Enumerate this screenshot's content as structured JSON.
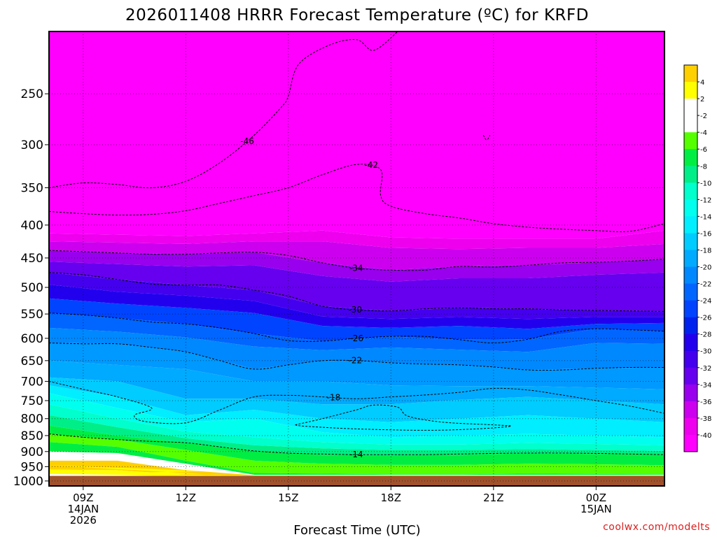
{
  "chart_data": {
    "type": "heatmap",
    "title": "2026011408 HRRR Forecast Temperature (ºC) for KRFD",
    "xlabel": "Forecast Time (UTC)",
    "ylabel": "",
    "x_ticks": [
      {
        "value": 9,
        "lines": [
          "09Z",
          "14JAN",
          "2026"
        ]
      },
      {
        "value": 12,
        "lines": [
          "12Z"
        ]
      },
      {
        "value": 15,
        "lines": [
          "15Z"
        ]
      },
      {
        "value": 18,
        "lines": [
          "18Z"
        ]
      },
      {
        "value": 21,
        "lines": [
          "21Z"
        ]
      },
      {
        "value": 24,
        "lines": [
          "00Z",
          "15JAN"
        ]
      }
    ],
    "y_ticks": [
      250,
      300,
      350,
      400,
      450,
      500,
      550,
      600,
      650,
      700,
      750,
      800,
      850,
      900,
      950,
      1000
    ],
    "xlim": [
      8,
      26
    ],
    "ylim": [
      1018,
      200
    ],
    "y_scale": "log (pressure)",
    "grid": "dotted",
    "colorbar": {
      "placement": "right",
      "labels": [
        "4",
        "2",
        "-2",
        "-4",
        "-6",
        "-8",
        "-10",
        "-12",
        "-14",
        "-16",
        "-18",
        "-20",
        "-22",
        "-24",
        "-26",
        "-28",
        "-30",
        "-32",
        "-34",
        "-36",
        "-38",
        "-40"
      ],
      "colors": [
        "#ffd000",
        "#ffff00",
        "#ffffff",
        "#ffffff",
        "#55ff00",
        "#00ee44",
        "#00ee88",
        "#00ffcc",
        "#00ffee",
        "#00eeff",
        "#00ccff",
        "#00aaff",
        "#0088ff",
        "#0066ff",
        "#0044ff",
        "#0022ee",
        "#2200ee",
        "#4400ee",
        "#6600ee",
        "#9900ee",
        "#cc00ee",
        "#ee00ee",
        "#ff00ff"
      ]
    },
    "contours": [
      {
        "label": "-46",
        "pts": [
          [
            8,
            350
          ],
          [
            9,
            344
          ],
          [
            10,
            346
          ],
          [
            11,
            350
          ],
          [
            12,
            342
          ],
          [
            13,
            320
          ],
          [
            14,
            290
          ],
          [
            14.8,
            262
          ],
          [
            15,
            252
          ],
          [
            15.3,
            225
          ],
          [
            16.2,
            210
          ],
          [
            17,
            206
          ],
          [
            17.5,
            214
          ],
          [
            18.2,
            200
          ]
        ]
      },
      {
        "label": "-42",
        "pts": [
          [
            8,
            381
          ],
          [
            9,
            384
          ],
          [
            10,
            386
          ],
          [
            11,
            385
          ],
          [
            12,
            380
          ],
          [
            13,
            370
          ],
          [
            14,
            360
          ],
          [
            15,
            350
          ],
          [
            16,
            334
          ],
          [
            17,
            322
          ],
          [
            17.7,
            328
          ],
          [
            17.7,
            360
          ],
          [
            18,
            374
          ],
          [
            19,
            384
          ],
          [
            20,
            390
          ],
          [
            21,
            398
          ],
          [
            22,
            403
          ],
          [
            23,
            406
          ],
          [
            24,
            408
          ],
          [
            25,
            409
          ],
          [
            26,
            398
          ]
        ]
      },
      {
        "label": "-34",
        "pts": [
          [
            8,
            438
          ],
          [
            9,
            440
          ],
          [
            10,
            442
          ],
          [
            11,
            444
          ],
          [
            12,
            444
          ],
          [
            13,
            442
          ],
          [
            14,
            441
          ],
          [
            15,
            446
          ],
          [
            16,
            458
          ],
          [
            17,
            467
          ],
          [
            18,
            470
          ],
          [
            19,
            470
          ],
          [
            20,
            464
          ],
          [
            21,
            465
          ],
          [
            22,
            462
          ],
          [
            23,
            458
          ],
          [
            24,
            457
          ],
          [
            25,
            455
          ],
          [
            26,
            452
          ]
        ]
      },
      {
        "label": "-30",
        "pts": [
          [
            8,
            474
          ],
          [
            9,
            478
          ],
          [
            10,
            486
          ],
          [
            11,
            494
          ],
          [
            12,
            496
          ],
          [
            13,
            496
          ],
          [
            14,
            505
          ],
          [
            15,
            516
          ],
          [
            16,
            535
          ],
          [
            17,
            542
          ],
          [
            18,
            544
          ],
          [
            19,
            540
          ],
          [
            20,
            538
          ],
          [
            21,
            540
          ],
          [
            22,
            540
          ],
          [
            23,
            542
          ],
          [
            24,
            543
          ],
          [
            25,
            544
          ],
          [
            26,
            545
          ]
        ]
      },
      {
        "label": "-26",
        "pts": [
          [
            8,
            548
          ],
          [
            9,
            552
          ],
          [
            10,
            558
          ],
          [
            11,
            566
          ],
          [
            12,
            570
          ],
          [
            13,
            578
          ],
          [
            14,
            590
          ],
          [
            15,
            605
          ],
          [
            16,
            606
          ],
          [
            17,
            600
          ],
          [
            18,
            596
          ],
          [
            19,
            596
          ],
          [
            20,
            603
          ],
          [
            21,
            610
          ],
          [
            22,
            602
          ],
          [
            23,
            585
          ],
          [
            24,
            580
          ],
          [
            25,
            582
          ],
          [
            26,
            585
          ]
        ]
      },
      {
        "label": "-22",
        "pts": [
          [
            8,
            610
          ],
          [
            9,
            612
          ],
          [
            10,
            612
          ],
          [
            11,
            620
          ],
          [
            12,
            630
          ],
          [
            13,
            650
          ],
          [
            14,
            670
          ],
          [
            15,
            660
          ],
          [
            16,
            650
          ],
          [
            17,
            650
          ],
          [
            18,
            655
          ],
          [
            19,
            658
          ],
          [
            20,
            660
          ],
          [
            21,
            665
          ],
          [
            22,
            672
          ],
          [
            23,
            672
          ],
          [
            24,
            668
          ],
          [
            25,
            666
          ],
          [
            26,
            666
          ]
        ]
      },
      {
        "label": "-18",
        "pts": [
          [
            8,
            700
          ],
          [
            9,
            720
          ],
          [
            10,
            740
          ],
          [
            11,
            770
          ],
          [
            10.5,
            790
          ],
          [
            10.8,
            808
          ],
          [
            12,
            812
          ],
          [
            13,
            775
          ],
          [
            14,
            740
          ],
          [
            15,
            736
          ],
          [
            16,
            740
          ],
          [
            17,
            745
          ],
          [
            18,
            740
          ],
          [
            19,
            735
          ],
          [
            20,
            728
          ],
          [
            21,
            718
          ],
          [
            22,
            722
          ],
          [
            23,
            735
          ],
          [
            24,
            750
          ],
          [
            25,
            765
          ],
          [
            26,
            785
          ]
        ]
      },
      {
        "label": "",
        "pts": [
          [
            15.2,
            818
          ],
          [
            16,
            800
          ],
          [
            17,
            775
          ],
          [
            17.5,
            762
          ],
          [
            18.2,
            768
          ],
          [
            18.5,
            793
          ],
          [
            19.5,
            810
          ],
          [
            21,
            818
          ],
          [
            21.5,
            822
          ],
          [
            20.5,
            830
          ],
          [
            19,
            834
          ],
          [
            17,
            830
          ],
          [
            15.5,
            822
          ],
          [
            15.2,
            818
          ]
        ]
      },
      {
        "label": "-14",
        "pts": [
          [
            8,
            845
          ],
          [
            9,
            855
          ],
          [
            10,
            862
          ],
          [
            11,
            868
          ],
          [
            12,
            872
          ],
          [
            13,
            885
          ],
          [
            14,
            898
          ],
          [
            15,
            905
          ],
          [
            16,
            908
          ],
          [
            17,
            910
          ],
          [
            18,
            910
          ],
          [
            19,
            910
          ],
          [
            20,
            908
          ],
          [
            21,
            906
          ],
          [
            22,
            905
          ],
          [
            23,
            905
          ],
          [
            24,
            906
          ],
          [
            25,
            908
          ],
          [
            26,
            910
          ]
        ]
      },
      {
        "label": "",
        "pts": [
          [
            20.7,
            290
          ],
          [
            20.8,
            295
          ],
          [
            20.9,
            290
          ]
        ]
      }
    ]
  },
  "footer": {
    "credit": "coolwx.com/modelts"
  }
}
